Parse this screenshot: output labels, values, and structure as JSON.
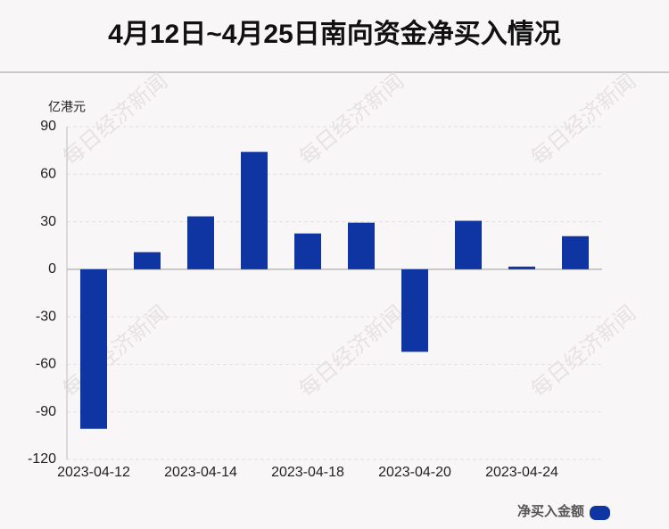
{
  "chart_data": {
    "type": "bar",
    "title": "4月12日~4月25日南向资金净买入情况",
    "y_label": "亿港元",
    "watermark": "每日经济新闻",
    "categories": [
      "2023-04-12",
      null,
      "2023-04-14",
      null,
      "2023-04-18",
      null,
      "2023-04-20",
      null,
      "2023-04-24",
      null
    ],
    "series": [
      {
        "name": "净买入金额",
        "color": "#0e35a1",
        "values": [
          -100.7,
          10.8,
          33.4,
          74.1,
          22.6,
          29.4,
          -52.1,
          30.6,
          1.7,
          20.9
        ]
      }
    ],
    "ylim": [
      -120,
      90
    ],
    "yticks": [
      -120,
      -90,
      -60,
      -30,
      0,
      30,
      60,
      90
    ],
    "grid": true,
    "legend": "bottom-right"
  }
}
